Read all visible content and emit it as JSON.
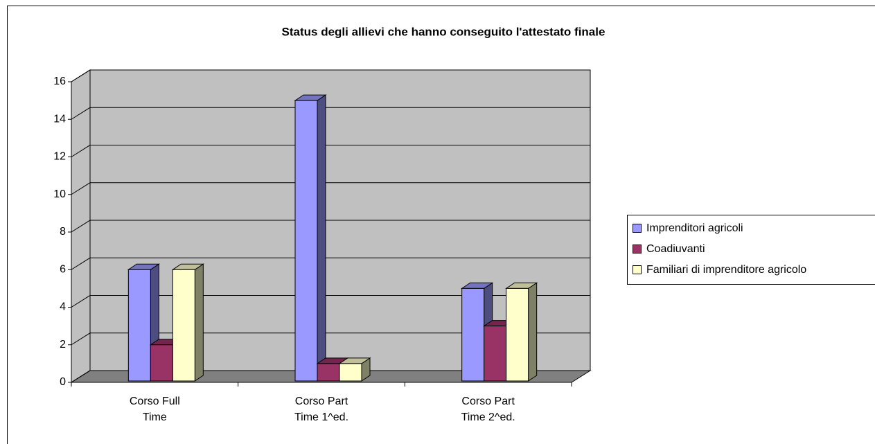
{
  "chart_data": {
    "type": "bar3d",
    "title": "Status degli allievi che hanno conseguito l'attestato finale",
    "categories": [
      "Corso Full Time",
      "Corso Part Time 1^ed.",
      "Corso Part Time 2^ed."
    ],
    "series": [
      {
        "name": "Imprenditori agricoli",
        "color": "#9999ff",
        "values": [
          6,
          15,
          5
        ]
      },
      {
        "name": "Coadiuvanti",
        "color": "#993366",
        "values": [
          2,
          1,
          3
        ]
      },
      {
        "name": "Familiari di imprenditore agricolo",
        "color": "#ffffcc",
        "values": [
          6,
          1,
          5
        ]
      }
    ],
    "ylim": [
      0,
      16
    ],
    "yticks": [
      0,
      2,
      4,
      6,
      8,
      10,
      12,
      14,
      16
    ],
    "grid": true,
    "legend": "right"
  }
}
